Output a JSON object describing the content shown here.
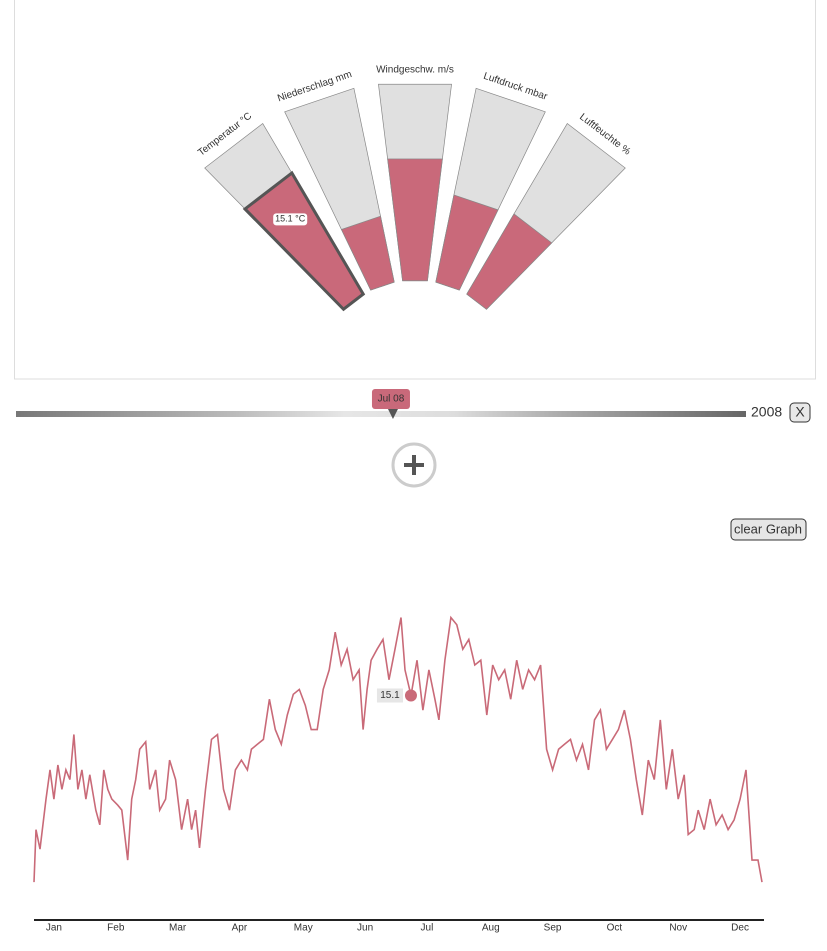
{
  "gauges": [
    {
      "label": "Temperatur °C",
      "fill": 0.71,
      "tooltip": "15.1 °C",
      "selected": true
    },
    {
      "label": "Niederschlag mm",
      "fill": 0.34
    },
    {
      "label": "Windgeschw. m/s",
      "fill": 0.62
    },
    {
      "label": "Luftdruck mbar",
      "fill": 0.45
    },
    {
      "label": "Luftfeuchte %",
      "fill": 0.47
    }
  ],
  "timeline": {
    "marker": "Jul 08",
    "year": "2008",
    "close": "X"
  },
  "buttons": {
    "clear": "clear Graph"
  },
  "chart_data": {
    "type": "line",
    "color": "#c96a78",
    "xlim": [
      0,
      366
    ],
    "ylim": [
      -2,
      24
    ],
    "xticks": [
      {
        "value": 10,
        "label": "Jan"
      },
      {
        "value": 41,
        "label": "Feb"
      },
      {
        "value": 72,
        "label": "Mar"
      },
      {
        "value": 103,
        "label": "Apr"
      },
      {
        "value": 135,
        "label": "May"
      },
      {
        "value": 166,
        "label": "Jun"
      },
      {
        "value": 197,
        "label": "Jul"
      },
      {
        "value": 229,
        "label": "Aug"
      },
      {
        "value": 260,
        "label": "Sep"
      },
      {
        "value": 291,
        "label": "Oct"
      },
      {
        "value": 323,
        "label": "Nov"
      },
      {
        "value": 354,
        "label": "Dec"
      }
    ],
    "x": [
      0,
      1,
      3,
      6,
      8,
      10,
      12,
      14,
      16,
      18,
      20,
      22,
      24,
      26,
      28,
      31,
      33,
      35,
      37,
      39,
      42,
      44,
      47,
      49,
      51,
      53,
      56,
      58,
      61,
      63,
      66,
      68,
      71,
      74,
      77,
      79,
      81,
      83,
      86,
      89,
      92,
      95,
      98,
      101,
      104,
      107,
      109,
      112,
      115,
      118,
      121,
      124,
      127,
      130,
      133,
      136,
      139,
      142,
      145,
      148,
      151,
      154,
      157,
      160,
      163,
      165,
      167,
      169,
      172,
      175,
      178,
      181,
      184,
      186,
      189,
      192,
      195,
      198,
      201,
      203,
      206,
      209,
      212,
      215,
      218,
      221,
      224,
      227,
      230,
      233,
      236,
      239,
      242,
      245,
      248,
      251,
      254,
      257,
      260,
      263,
      266,
      269,
      272,
      275,
      278,
      281,
      284,
      287,
      290,
      293,
      296,
      299,
      302,
      305,
      308,
      311,
      314,
      317,
      320,
      323,
      326,
      328,
      331,
      333,
      336,
      339,
      342,
      345,
      348,
      351,
      354,
      357,
      360,
      363,
      365
    ],
    "values": [
      -0.2,
      4.1,
      2.5,
      6.6,
      9.0,
      6.6,
      9.4,
      7.4,
      9.0,
      8.2,
      11.9,
      7.4,
      9.0,
      6.6,
      8.6,
      5.7,
      4.5,
      9.0,
      7.4,
      6.6,
      6.1,
      5.7,
      1.6,
      6.6,
      8.2,
      10.7,
      11.3,
      7.4,
      9.0,
      5.7,
      6.6,
      9.8,
      8.2,
      4.1,
      6.6,
      4.1,
      5.7,
      2.6,
      7.4,
      11.5,
      11.9,
      7.4,
      5.7,
      9.0,
      9.8,
      9.0,
      10.7,
      11.1,
      11.5,
      14.8,
      12.3,
      11.1,
      13.5,
      15.2,
      15.6,
      14.3,
      12.3,
      12.3,
      15.6,
      17.2,
      20.3,
      17.6,
      18.9,
      16.4,
      17.2,
      12.3,
      15.6,
      18.0,
      18.9,
      19.7,
      16.4,
      18.9,
      21.5,
      17.2,
      15.1,
      18.0,
      13.9,
      17.2,
      14.8,
      13.1,
      18.0,
      21.5,
      20.9,
      18.9,
      19.7,
      17.6,
      18.0,
      13.5,
      17.6,
      16.4,
      17.2,
      14.8,
      18.0,
      15.6,
      17.2,
      16.4,
      17.6,
      10.7,
      9.0,
      10.7,
      11.1,
      11.5,
      9.8,
      11.1,
      9.0,
      13.1,
      13.9,
      10.7,
      11.5,
      12.3,
      13.9,
      11.5,
      8.2,
      5.3,
      9.8,
      8.2,
      13.1,
      7.4,
      10.7,
      6.6,
      8.6,
      3.7,
      4.1,
      5.7,
      4.1,
      6.6,
      4.5,
      5.3,
      4.1,
      4.9,
      6.6,
      9.0,
      1.6,
      1.6,
      -0.2
    ],
    "tooltip": {
      "x": 189,
      "value": 15.1
    }
  }
}
